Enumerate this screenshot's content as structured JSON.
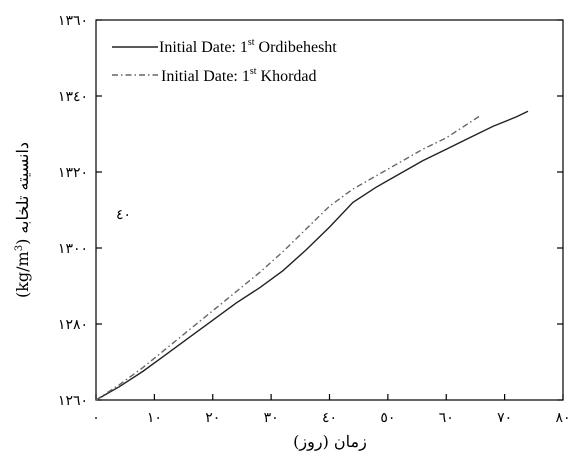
{
  "chart_data": {
    "type": "line",
    "xlabel": "زمان (روز)",
    "ylabel_prefix": "(kg/m",
    "ylabel_sup": "3",
    "ylabel_suffix": ") دانسیته تلخابه",
    "annotation": "٤٠",
    "xlim": [
      0,
      80
    ],
    "ylim": [
      1260,
      1360
    ],
    "x_ticks": [
      {
        "value": 0,
        "label": "٠"
      },
      {
        "value": 10,
        "label": "١٠"
      },
      {
        "value": 20,
        "label": "٢٠"
      },
      {
        "value": 30,
        "label": "٣٠"
      },
      {
        "value": 40,
        "label": "٤٠"
      },
      {
        "value": 50,
        "label": "٥٠"
      },
      {
        "value": 60,
        "label": "٦٠"
      },
      {
        "value": 70,
        "label": "٧٠"
      },
      {
        "value": 80,
        "label": "٨٠"
      }
    ],
    "y_ticks": [
      {
        "value": 1260,
        "label": "١٢٦٠"
      },
      {
        "value": 1280,
        "label": "١٢٨٠"
      },
      {
        "value": 1300,
        "label": "١٣٠٠"
      },
      {
        "value": 1320,
        "label": "١٣٢٠"
      },
      {
        "value": 1340,
        "label": "١٣٤٠"
      },
      {
        "value": 1360,
        "label": "١٣٦٠"
      }
    ],
    "grid": false,
    "legend_position": "top-left",
    "series": [
      {
        "name_main": "Initial Date: 1",
        "name_sup": "st",
        "name_rest": " Ordibehesht",
        "style": "solid",
        "color": "#222222",
        "points": [
          [
            0,
            1260
          ],
          [
            4,
            1263.5
          ],
          [
            8,
            1267.5
          ],
          [
            12,
            1272
          ],
          [
            16,
            1276.5
          ],
          [
            20,
            1281
          ],
          [
            24,
            1285.5
          ],
          [
            28,
            1289.5
          ],
          [
            32,
            1294
          ],
          [
            36,
            1299.5
          ],
          [
            40,
            1305.5
          ],
          [
            44,
            1312
          ],
          [
            48,
            1316
          ],
          [
            52,
            1319.5
          ],
          [
            56,
            1323
          ],
          [
            60,
            1326
          ],
          [
            64,
            1329
          ],
          [
            68,
            1332
          ],
          [
            72,
            1334.5
          ],
          [
            74,
            1336
          ]
        ]
      },
      {
        "name_main": "Initial Date: 1",
        "name_sup": "st",
        "name_rest": " Khordad",
        "style": "dashdot",
        "color": "#666666",
        "points": [
          [
            0,
            1260
          ],
          [
            4,
            1264
          ],
          [
            8,
            1268.5
          ],
          [
            12,
            1273.5
          ],
          [
            16,
            1278.5
          ],
          [
            20,
            1283.5
          ],
          [
            24,
            1288.5
          ],
          [
            28,
            1293.5
          ],
          [
            32,
            1299
          ],
          [
            36,
            1305
          ],
          [
            40,
            1311
          ],
          [
            44,
            1315.5
          ],
          [
            48,
            1319
          ],
          [
            52,
            1322.5
          ],
          [
            56,
            1326
          ],
          [
            60,
            1329
          ],
          [
            64,
            1333
          ],
          [
            66,
            1335
          ]
        ]
      }
    ]
  }
}
